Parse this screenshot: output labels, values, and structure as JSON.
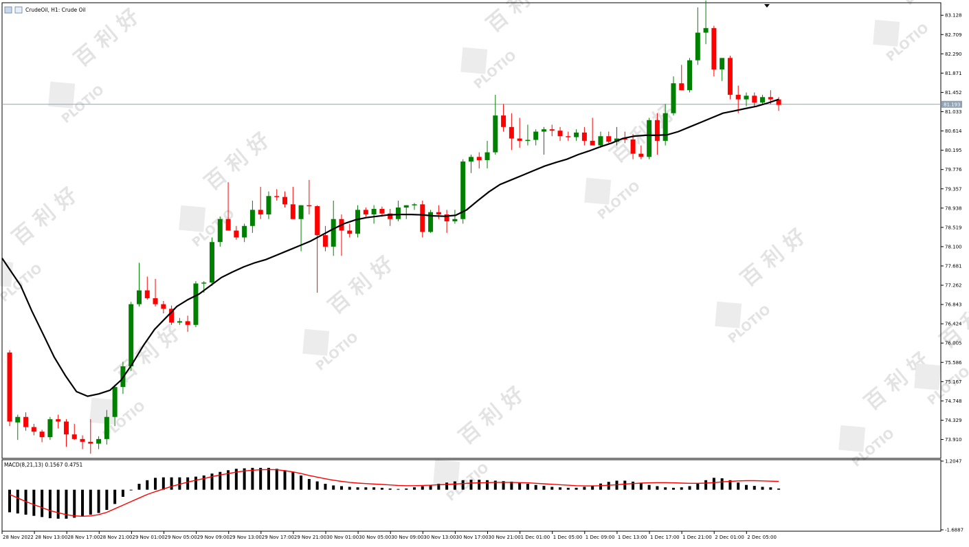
{
  "header": {
    "title": "CrudeOil, H1:  Crude Oil"
  },
  "watermark": {
    "brand": "PLOTIO",
    "cn": "百 利 好"
  },
  "colors": {
    "bull": "#008000",
    "bear": "#ff0000",
    "ma": "#000000",
    "signal": "#ff0000",
    "hist": "#000000",
    "price_line": "#8fa3b4"
  },
  "chart_data": [
    {
      "type": "candlestick",
      "symbol": "CrudeOil",
      "timeframe": "H1",
      "ylim": [
        73.5,
        83.4
      ],
      "y_ticks": [
        "83.128",
        "82.709",
        "82.290",
        "81.871",
        "81.452",
        "81.033",
        "80.614",
        "80.195",
        "79.776",
        "79.357",
        "78.938",
        "78.519",
        "78.100",
        "77.681",
        "77.262",
        "76.843",
        "76.424",
        "76.005",
        "75.586",
        "75.167",
        "74.748",
        "74.329",
        "73.910"
      ],
      "x_ticks": [
        "28 Nov 2022",
        "28 Nov 13:00",
        "28 Nov 17:00",
        "28 Nov 21:00",
        "29 Nov 01:00",
        "29 Nov 05:00",
        "29 Nov 09:00",
        "29 Nov 13:00",
        "29 Nov 17:00",
        "29 Nov 21:00",
        "30 Nov 01:00",
        "30 Nov 05:00",
        "30 Nov 09:00",
        "30 Nov 13:00",
        "30 Nov 17:00",
        "30 Nov 21:00",
        "1 Dec 01:00",
        "1 Dec 05:00",
        "1 Dec 09:00",
        "1 Dec 13:00",
        "1 Dec 17:00",
        "1 Dec 21:00",
        "2 Dec 01:00",
        "2 Dec 05:00"
      ],
      "current_price": "81.193",
      "candles": [
        [
          75.8,
          75.85,
          74.2,
          74.3
        ],
        [
          74.28,
          74.45,
          73.9,
          74.4
        ],
        [
          74.4,
          74.5,
          74.1,
          74.18
        ],
        [
          74.18,
          74.25,
          74.0,
          74.08
        ],
        [
          74.08,
          74.12,
          73.85,
          73.96
        ],
        [
          73.96,
          74.4,
          73.9,
          74.35
        ],
        [
          74.35,
          74.45,
          74.15,
          74.3
        ],
        [
          74.3,
          74.35,
          73.75,
          74.02
        ],
        [
          74.02,
          74.25,
          73.9,
          73.92
        ],
        [
          73.92,
          74.0,
          73.7,
          73.86
        ],
        [
          73.86,
          74.35,
          73.6,
          73.82
        ],
        [
          73.82,
          73.98,
          73.7,
          73.92
        ],
        [
          73.92,
          74.55,
          73.8,
          74.4
        ],
        [
          74.4,
          75.1,
          74.2,
          75.05
        ],
        [
          75.05,
          75.6,
          74.9,
          75.5
        ],
        [
          75.5,
          76.9,
          75.4,
          76.85
        ],
        [
          76.85,
          77.75,
          76.8,
          77.15
        ],
        [
          77.15,
          77.45,
          76.95,
          76.98
        ],
        [
          76.98,
          77.4,
          76.8,
          76.85
        ],
        [
          76.85,
          76.92,
          76.65,
          76.75
        ],
        [
          76.75,
          76.82,
          76.4,
          76.45
        ],
        [
          76.45,
          76.55,
          76.4,
          76.48
        ],
        [
          76.48,
          76.6,
          76.25,
          76.4
        ],
        [
          76.4,
          77.35,
          76.35,
          77.3
        ],
        [
          77.3,
          77.35,
          77.1,
          77.32
        ],
        [
          77.32,
          78.3,
          77.25,
          78.2
        ],
        [
          78.2,
          78.75,
          78.1,
          78.7
        ],
        [
          78.7,
          79.5,
          78.45,
          78.45
        ],
        [
          78.45,
          78.55,
          78.25,
          78.3
        ],
        [
          78.3,
          78.6,
          78.2,
          78.55
        ],
        [
          78.55,
          79.1,
          78.4,
          78.9
        ],
        [
          78.9,
          79.4,
          78.7,
          78.8
        ],
        [
          78.8,
          79.3,
          78.7,
          79.2
        ],
        [
          79.2,
          79.35,
          79.1,
          79.18
        ],
        [
          79.18,
          79.3,
          78.95,
          79.02
        ],
        [
          79.02,
          79.4,
          78.7,
          78.7
        ],
        [
          78.7,
          79.0,
          78.0,
          79.0
        ],
        [
          79.0,
          79.55,
          78.8,
          78.98
        ],
        [
          78.98,
          79.0,
          77.1,
          78.35
        ],
        [
          78.35,
          78.55,
          78.0,
          78.1
        ],
        [
          78.1,
          79.1,
          77.9,
          78.7
        ],
        [
          78.7,
          78.8,
          77.9,
          78.45
        ],
        [
          78.45,
          78.6,
          78.3,
          78.38
        ],
        [
          78.38,
          79.0,
          78.3,
          78.9
        ],
        [
          78.9,
          78.95,
          78.75,
          78.8
        ],
        [
          78.8,
          79.0,
          78.6,
          78.92
        ],
        [
          78.92,
          78.97,
          78.75,
          78.82
        ],
        [
          78.82,
          78.92,
          78.55,
          78.7
        ],
        [
          78.7,
          79.1,
          78.65,
          78.95
        ],
        [
          78.95,
          79.0,
          78.7,
          79.0
        ],
        [
          79.0,
          79.05,
          78.9,
          79.02
        ],
        [
          79.02,
          79.1,
          78.3,
          78.42
        ],
        [
          78.42,
          78.9,
          78.4,
          78.85
        ],
        [
          78.85,
          79.0,
          78.7,
          78.8
        ],
        [
          78.8,
          78.9,
          78.4,
          78.65
        ],
        [
          78.65,
          78.9,
          78.6,
          78.7
        ],
        [
          78.7,
          80.0,
          78.6,
          79.95
        ],
        [
          79.95,
          80.1,
          79.7,
          80.05
        ],
        [
          80.05,
          80.15,
          79.8,
          79.98
        ],
        [
          79.98,
          80.4,
          79.8,
          80.15
        ],
        [
          80.15,
          81.4,
          80.1,
          80.95
        ],
        [
          80.95,
          81.2,
          80.6,
          80.7
        ],
        [
          80.7,
          81.0,
          80.2,
          80.45
        ],
        [
          80.45,
          80.9,
          80.25,
          80.4
        ],
        [
          80.4,
          80.75,
          80.3,
          80.42
        ],
        [
          80.42,
          80.65,
          80.3,
          80.6
        ],
        [
          80.6,
          80.7,
          80.1,
          80.65
        ],
        [
          80.65,
          80.75,
          80.5,
          80.62
        ],
        [
          80.62,
          80.7,
          80.4,
          80.5
        ],
        [
          80.5,
          80.6,
          80.4,
          80.48
        ],
        [
          80.48,
          80.65,
          80.4,
          80.58
        ],
        [
          80.58,
          80.7,
          80.3,
          80.4
        ],
        [
          80.4,
          80.9,
          80.3,
          80.3
        ],
        [
          80.3,
          80.6,
          80.25,
          80.5
        ],
        [
          80.5,
          80.6,
          80.35,
          80.38
        ],
        [
          80.38,
          80.7,
          80.3,
          80.45
        ],
        [
          80.45,
          80.6,
          80.35,
          80.43
        ],
        [
          80.43,
          80.55,
          80.0,
          80.12
        ],
        [
          80.12,
          80.3,
          80.0,
          80.05
        ],
        [
          80.05,
          80.9,
          80.0,
          80.85
        ],
        [
          80.85,
          81.0,
          80.1,
          80.4
        ],
        [
          80.4,
          81.2,
          80.3,
          81.0
        ],
        [
          81.0,
          81.8,
          80.95,
          81.65
        ],
        [
          81.65,
          82.05,
          81.5,
          81.5
        ],
        [
          81.5,
          82.2,
          81.45,
          82.15
        ],
        [
          82.15,
          83.3,
          82.05,
          82.75
        ],
        [
          82.75,
          83.45,
          82.5,
          82.85
        ],
        [
          82.85,
          82.9,
          81.8,
          81.95
        ],
        [
          81.95,
          82.2,
          81.7,
          82.2
        ],
        [
          82.2,
          82.25,
          81.3,
          81.4
        ],
        [
          81.4,
          81.6,
          81.0,
          81.3
        ],
        [
          81.3,
          81.45,
          81.15,
          81.38
        ],
        [
          81.38,
          81.45,
          81.15,
          81.23
        ],
        [
          81.23,
          81.4,
          81.2,
          81.35
        ],
        [
          81.35,
          81.5,
          81.2,
          81.3
        ],
        [
          81.3,
          81.35,
          81.05,
          81.18
        ]
      ],
      "ma": [
        77.85,
        77.25,
        76.7,
        76.2,
        75.7,
        75.3,
        74.95,
        74.85,
        74.9,
        74.98,
        75.2,
        75.55,
        75.95,
        76.3,
        76.55,
        76.8,
        76.95,
        77.07,
        77.25,
        77.43,
        77.55,
        77.66,
        77.75,
        77.82,
        77.92,
        78.02,
        78.12,
        78.22,
        78.35,
        78.48,
        78.6,
        78.68,
        78.73,
        78.76,
        78.79,
        78.8,
        78.8,
        78.79,
        78.77,
        78.76,
        78.78,
        78.9,
        79.1,
        79.29,
        79.45,
        79.55,
        79.65,
        79.75,
        79.85,
        79.93,
        80.0,
        80.1,
        80.18,
        80.27,
        80.35,
        80.45,
        80.5,
        80.52,
        80.52,
        80.53,
        80.6,
        80.7,
        80.8,
        80.9,
        81.0,
        81.05,
        81.1,
        81.15,
        81.22,
        81.3
      ],
      "ma_start_index": 0,
      "ma_end_index": 95
    },
    {
      "type": "bar",
      "name": "MACD(8,21,13) 0.1567 0.4751",
      "ylim": [
        -1.6887,
        1.2047
      ],
      "y_ticks": [
        "1.2047",
        "-1.6887"
      ],
      "histogram": [
        -0.95,
        -1.0,
        -1.05,
        -1.1,
        -1.15,
        -1.2,
        -1.22,
        -1.22,
        -1.18,
        -1.12,
        -1.05,
        -0.98,
        -0.85,
        -0.6,
        -0.3,
        0.0,
        0.25,
        0.4,
        0.5,
        0.52,
        0.52,
        0.52,
        0.52,
        0.55,
        0.6,
        0.68,
        0.75,
        0.82,
        0.88,
        0.9,
        0.92,
        0.92,
        0.92,
        0.88,
        0.82,
        0.74,
        0.6,
        0.45,
        0.35,
        0.25,
        0.18,
        0.15,
        0.12,
        0.1,
        0.1,
        0.1,
        0.08,
        0.05,
        0.03,
        0.05,
        0.1,
        0.15,
        0.2,
        0.25,
        0.3,
        0.35,
        0.4,
        0.42,
        0.42,
        0.4,
        0.38,
        0.36,
        0.34,
        0.3,
        0.25,
        0.2,
        0.16,
        0.12,
        0.1,
        0.08,
        0.08,
        0.12,
        0.18,
        0.26,
        0.33,
        0.38,
        0.38,
        0.34,
        0.28,
        0.2,
        0.15,
        0.1,
        0.08,
        0.1,
        0.15,
        0.25,
        0.4,
        0.5,
        0.48,
        0.4,
        0.3,
        0.2,
        0.16,
        0.12,
        0.1,
        0.05
      ],
      "signal": [
        -0.2,
        -0.35,
        -0.5,
        -0.63,
        -0.75,
        -0.88,
        -0.97,
        -1.05,
        -1.1,
        -1.12,
        -1.1,
        -1.05,
        -0.95,
        -0.8,
        -0.65,
        -0.5,
        -0.35,
        -0.2,
        -0.08,
        0.03,
        0.14,
        0.23,
        0.32,
        0.4,
        0.47,
        0.55,
        0.62,
        0.68,
        0.74,
        0.79,
        0.82,
        0.84,
        0.85,
        0.84,
        0.8,
        0.75,
        0.68,
        0.6,
        0.53,
        0.46,
        0.4,
        0.35,
        0.31,
        0.28,
        0.26,
        0.24,
        0.22,
        0.2,
        0.18,
        0.17,
        0.17,
        0.18,
        0.19,
        0.21,
        0.22,
        0.24,
        0.26,
        0.28,
        0.29,
        0.3,
        0.31,
        0.31,
        0.31,
        0.3,
        0.29,
        0.27,
        0.25,
        0.23,
        0.21,
        0.19,
        0.17,
        0.16,
        0.16,
        0.17,
        0.19,
        0.21,
        0.24,
        0.26,
        0.28,
        0.29,
        0.3,
        0.3,
        0.29,
        0.28,
        0.27,
        0.27,
        0.28,
        0.3,
        0.33,
        0.35,
        0.37,
        0.38,
        0.38,
        0.37,
        0.36,
        0.35
      ]
    }
  ]
}
